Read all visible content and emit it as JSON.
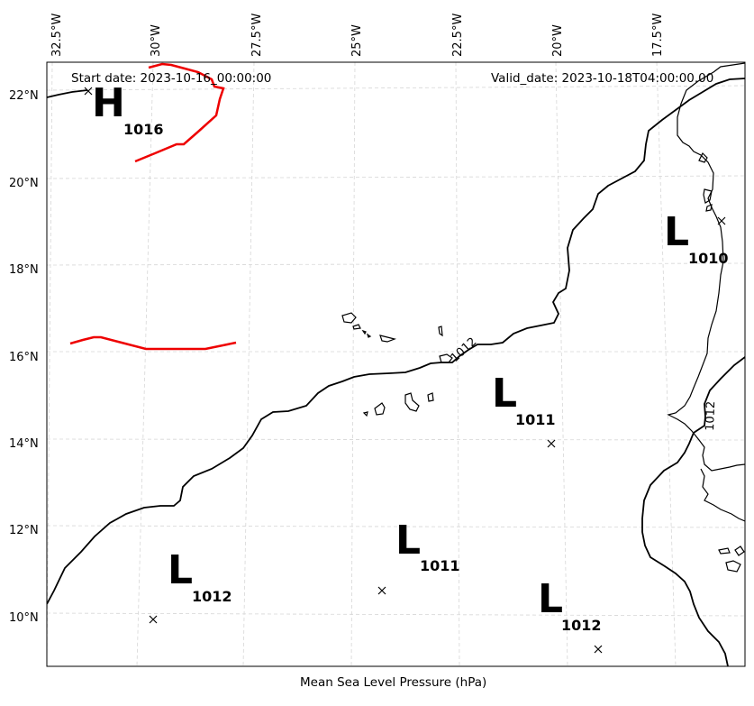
{
  "map": {
    "start_date": "Start date: 2023-10-16_00:00:00",
    "valid_date": "Valid_date: 2023-10-18T04:00:00.00",
    "caption": "Mean Sea Level Pressure (hPa)",
    "isobar_label": "1012",
    "lon_ticks": [
      "32.5°W",
      "30°W",
      "27.5°W",
      "25°W",
      "22.5°W",
      "20°W",
      "17.5°W"
    ],
    "lat_ticks": [
      "22°N",
      "20°N",
      "18°N",
      "16°N",
      "14°N",
      "12°N",
      "10°N"
    ],
    "pressure_centers": [
      {
        "letter": "H",
        "value": "1016"
      },
      {
        "letter": "L",
        "value": "1010"
      },
      {
        "letter": "L",
        "value": "1011"
      },
      {
        "letter": "L",
        "value": "1011"
      },
      {
        "letter": "L",
        "value": "1012"
      },
      {
        "letter": "L",
        "value": "1012"
      }
    ],
    "colors": {
      "isobar": "#000000",
      "high_contour": "#ee0000",
      "grid": "#d6d6d6"
    }
  }
}
